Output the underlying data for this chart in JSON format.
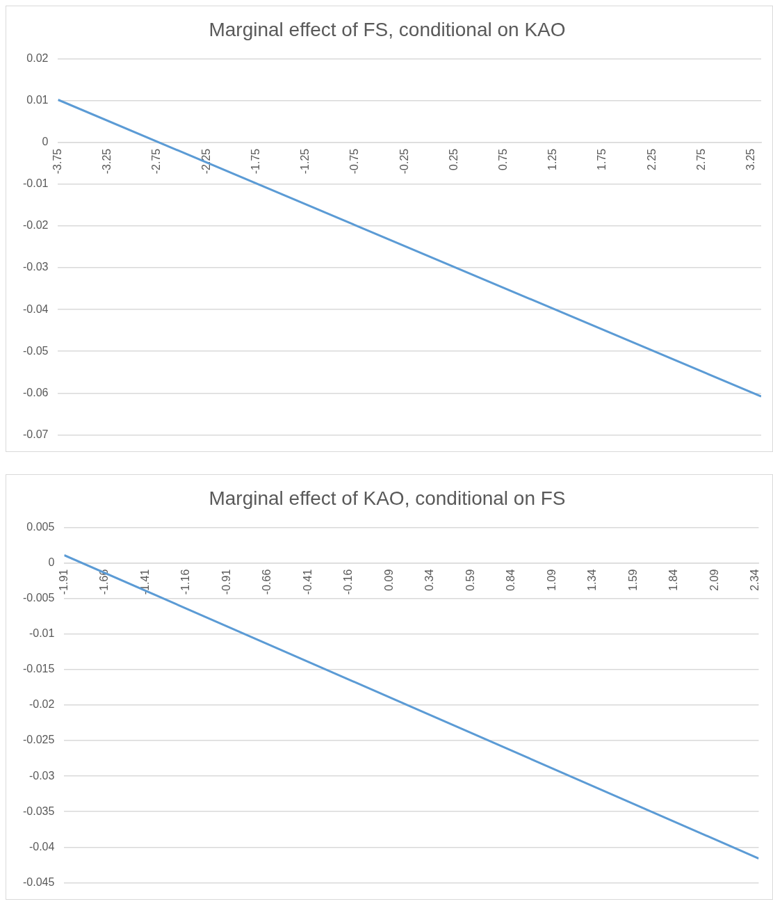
{
  "chart_data": [
    {
      "type": "line",
      "title": "Marginal effect of FS, conditional on KAO",
      "xlim": [
        -3.75,
        3.35
      ],
      "xticks": [
        -3.75,
        -3.25,
        -2.75,
        -2.25,
        -1.75,
        -1.25,
        -0.75,
        -0.25,
        0.25,
        0.75,
        1.25,
        1.75,
        2.25,
        2.75,
        3.25
      ],
      "ylim": [
        -0.07,
        0.02
      ],
      "yticks": [
        -0.07,
        -0.06,
        -0.05,
        -0.04,
        -0.03,
        -0.02,
        -0.01,
        0,
        0.01,
        0.02
      ],
      "grid": "y",
      "legend": false,
      "marker": "none",
      "series": [
        {
          "color": "#5b9bd5",
          "x": [
            -3.75,
            3.35
          ],
          "values": [
            0.0102,
            -0.0608
          ]
        }
      ]
    },
    {
      "type": "line",
      "title": "Marginal effect of KAO, conditional on FS",
      "xlim": [
        -1.91,
        2.36
      ],
      "xticks": [
        -1.91,
        -1.66,
        -1.41,
        -1.16,
        -0.91,
        -0.66,
        -0.41,
        -0.16,
        0.09,
        0.34,
        0.59,
        0.84,
        1.09,
        1.34,
        1.59,
        1.84,
        2.09,
        2.34
      ],
      "ylim": [
        -0.045,
        0.005
      ],
      "yticks": [
        -0.045,
        -0.04,
        -0.035,
        -0.03,
        -0.025,
        -0.02,
        -0.015,
        -0.01,
        -0.005,
        0,
        0.005
      ],
      "grid": "y",
      "legend": false,
      "marker": "none",
      "series": [
        {
          "color": "#5b9bd5",
          "x": [
            -1.91,
            2.36
          ],
          "values": [
            0.0011,
            -0.0416
          ]
        }
      ]
    }
  ]
}
